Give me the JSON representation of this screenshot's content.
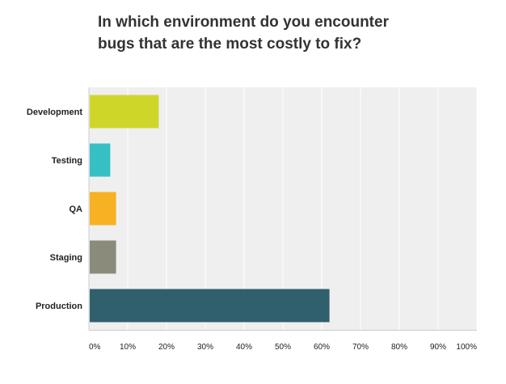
{
  "chart_data": {
    "type": "bar",
    "orientation": "horizontal",
    "title_lines": [
      "In which environment do you encounter",
      "bugs that are the most costly to fix?"
    ],
    "categories": [
      "Development",
      "Testing",
      "QA",
      "Staging",
      "Production"
    ],
    "values": [
      18,
      5.5,
      7,
      7,
      62
    ],
    "value_unit": "percent",
    "colors": [
      "#cfd62a",
      "#37c0c4",
      "#f8b122",
      "#8b8b7b",
      "#30606d"
    ],
    "xlim": [
      0,
      100
    ],
    "ticks": [
      0,
      10,
      20,
      30,
      40,
      50,
      60,
      70,
      80,
      90,
      100
    ],
    "tick_labels": [
      "0%",
      "10%",
      "20%",
      "30%",
      "40%",
      "50%",
      "60%",
      "70%",
      "80%",
      "90%",
      "100%"
    ],
    "grid": true,
    "plot_background": "#efefef"
  }
}
